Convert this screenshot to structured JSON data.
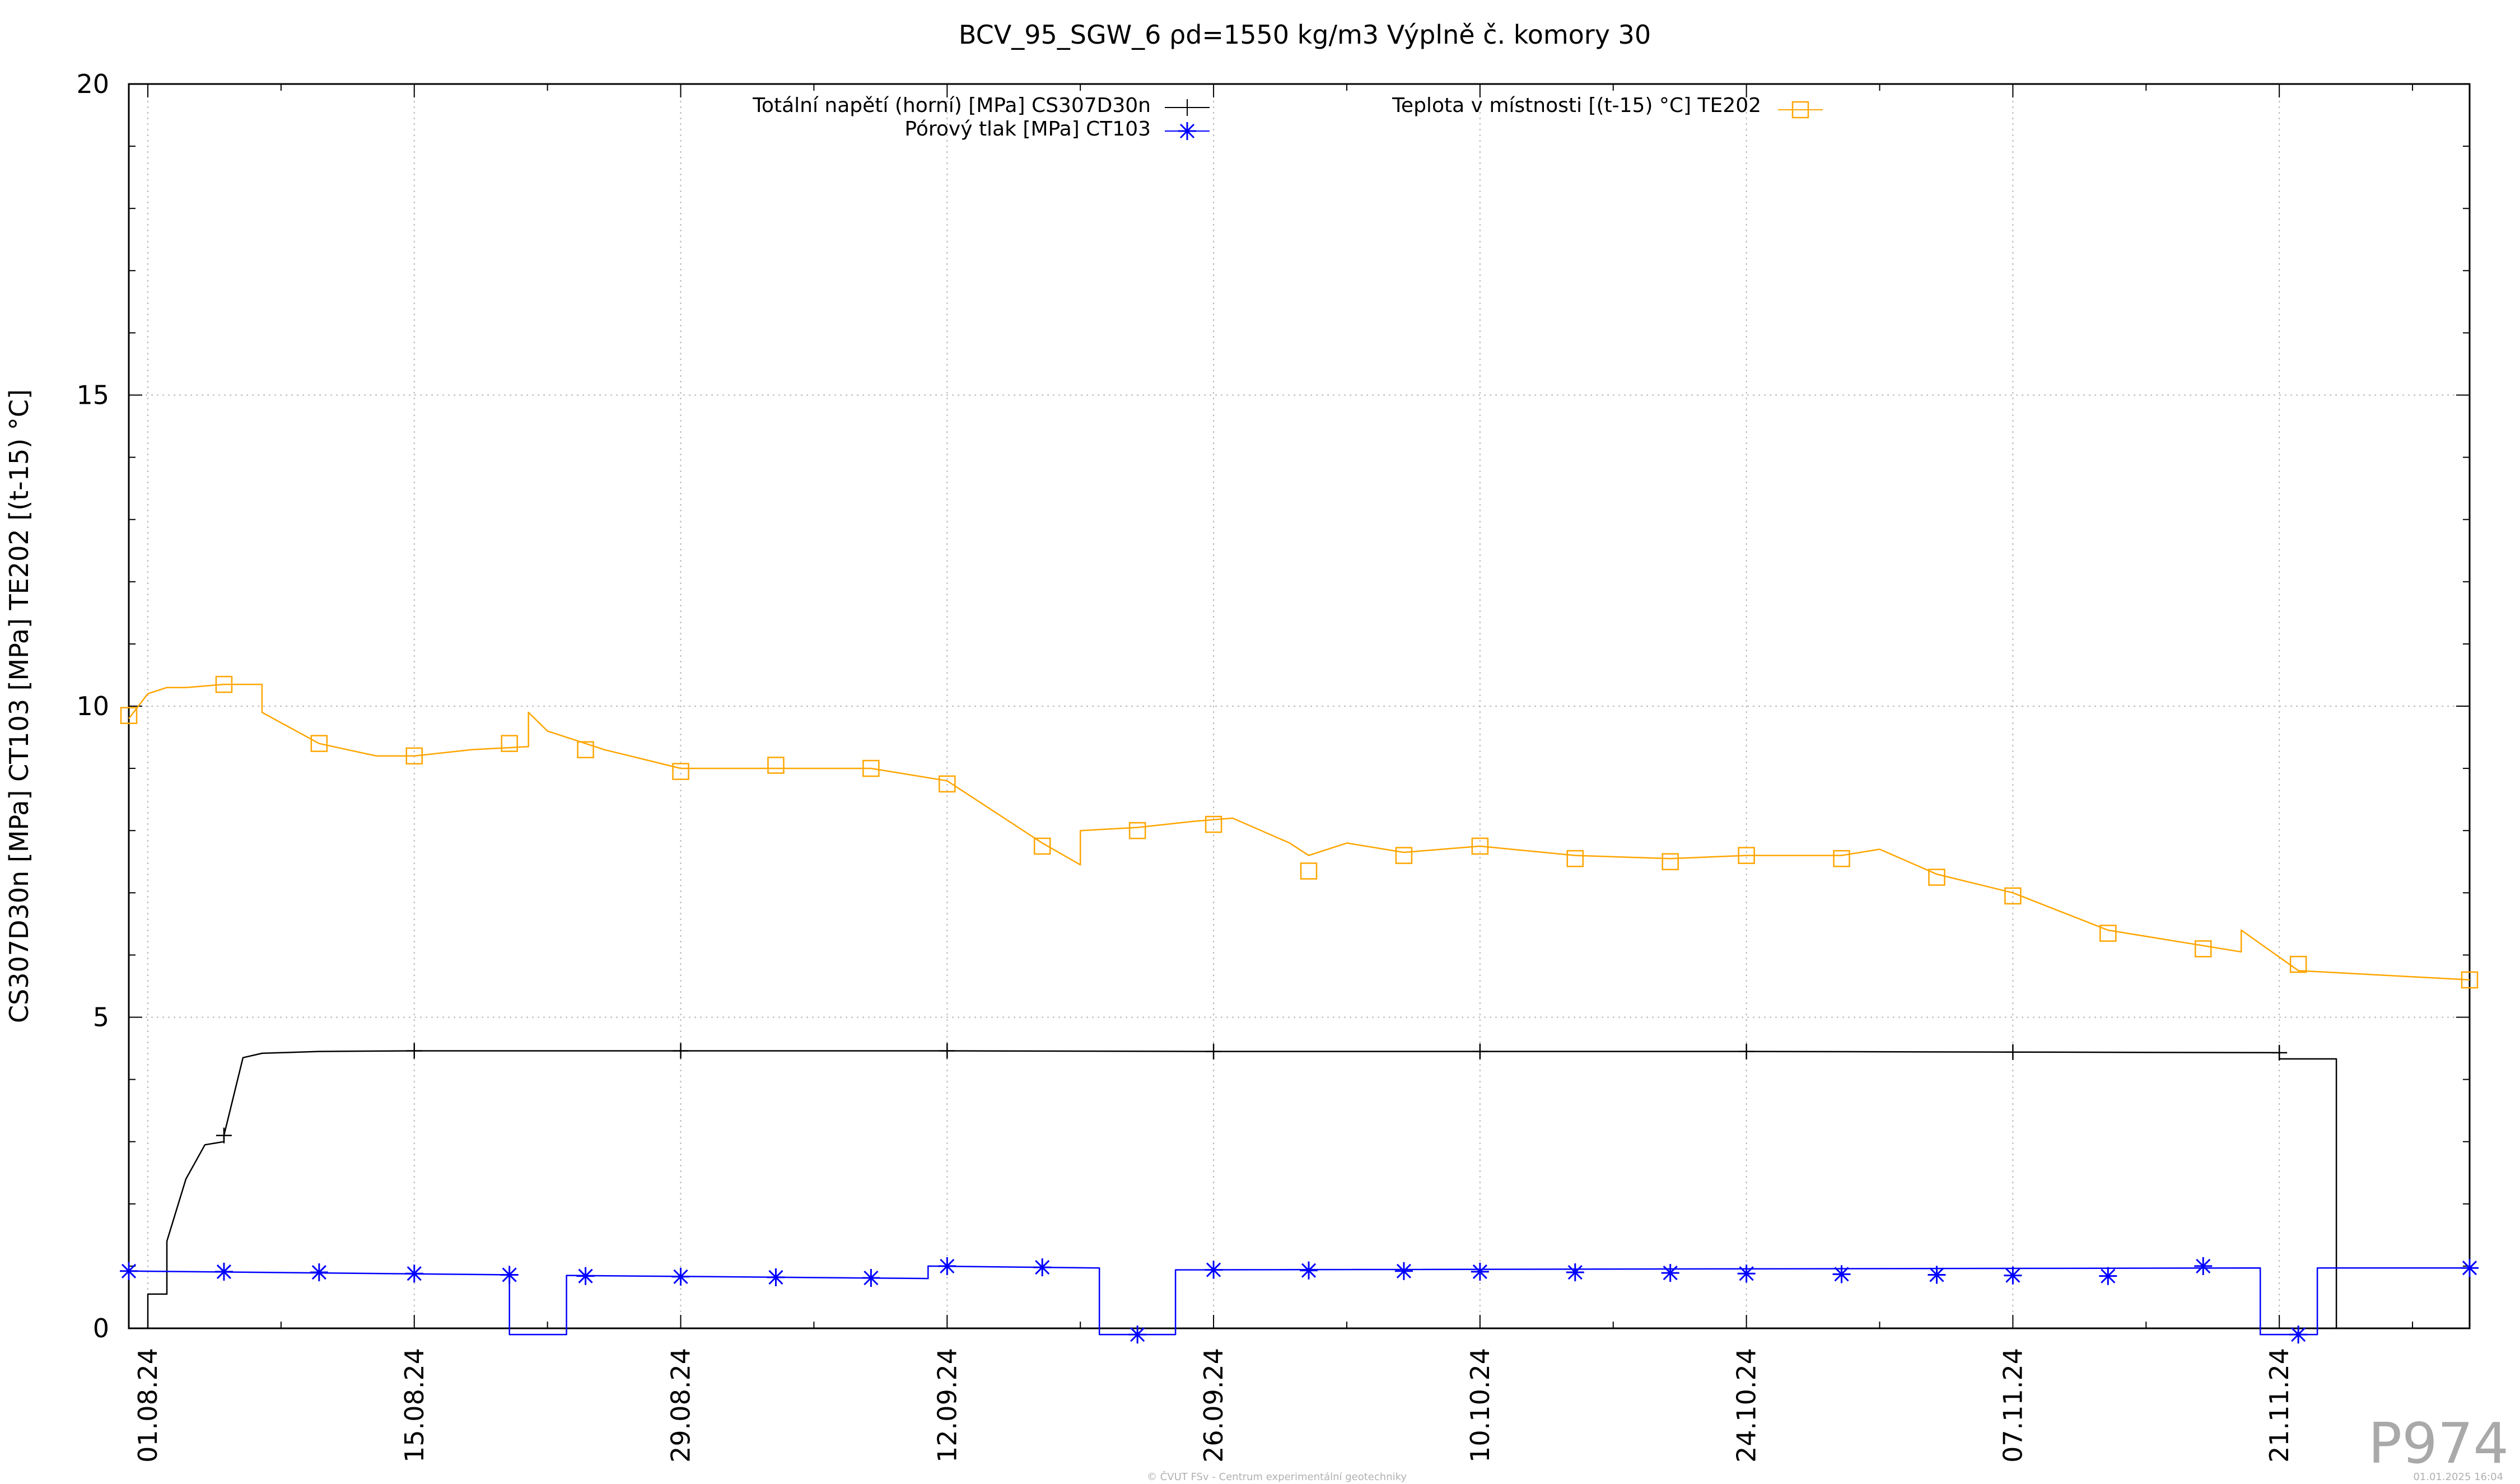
{
  "chart_data": {
    "type": "line",
    "title": "BCV_95_SGW_6 ρd=1550 kg/m3 Výplně č. komory 30",
    "xlabel": "",
    "ylabel": "CS307D30n [MPa] CT103 [MPa] TE202 [(t-15) °C]",
    "ylim": [
      0,
      20
    ],
    "yticks": [
      "0",
      "5",
      "10",
      "15",
      "20"
    ],
    "xlim": [
      "2024-07-31",
      "2024-12-01"
    ],
    "xticks": [
      {
        "date": "2024-08-01",
        "label": "01.08.24"
      },
      {
        "date": "2024-08-15",
        "label": "15.08.24"
      },
      {
        "date": "2024-08-29",
        "label": "29.08.24"
      },
      {
        "date": "2024-09-12",
        "label": "12.09.24"
      },
      {
        "date": "2024-09-26",
        "label": "26.09.24"
      },
      {
        "date": "2024-10-10",
        "label": "10.10.24"
      },
      {
        "date": "2024-10-24",
        "label": "24.10.24"
      },
      {
        "date": "2024-11-07",
        "label": "07.11.24"
      },
      {
        "date": "2024-11-21",
        "label": "21.11.24"
      }
    ],
    "grid": true,
    "legend_position": "top",
    "series": [
      {
        "name": "Totální napětí (horní) [MPa] CS307D30n",
        "color": "#000000",
        "marker": "plus",
        "step": false,
        "x": [
          "2024-07-31",
          "2024-08-01",
          "2024-08-01",
          "2024-08-02",
          "2024-08-02",
          "2024-08-03",
          "2024-08-04",
          "2024-08-05",
          "2024-08-05",
          "2024-08-06",
          "2024-08-07",
          "2024-08-08",
          "2024-08-10",
          "2024-08-15",
          "2024-08-29",
          "2024-09-12",
          "2024-09-26",
          "2024-10-10",
          "2024-10-24",
          "2024-11-07",
          "2024-11-21",
          "2024-11-21",
          "2024-11-24",
          "2024-11-24",
          "2024-11-26",
          "2024-12-01"
        ],
        "y": [
          0.0,
          0.0,
          0.55,
          0.55,
          1.4,
          2.4,
          2.95,
          3.0,
          3.1,
          4.35,
          4.42,
          4.43,
          4.45,
          4.46,
          4.46,
          4.46,
          4.45,
          4.45,
          4.45,
          4.44,
          4.43,
          4.33,
          4.33,
          0.0,
          0.0,
          0.0
        ],
        "markers_x": [
          "2024-08-05",
          "2024-08-15",
          "2024-08-29",
          "2024-09-12",
          "2024-09-26",
          "2024-10-10",
          "2024-10-24",
          "2024-11-07",
          "2024-11-21"
        ],
        "markers_y": [
          3.1,
          4.46,
          4.46,
          4.46,
          4.45,
          4.45,
          4.45,
          4.44,
          4.43
        ]
      },
      {
        "name": "Pórový tlak [MPa] CT103",
        "color": "#0000ff",
        "marker": "star",
        "step": true,
        "x": [
          "2024-07-31",
          "2024-08-20",
          "2024-08-20",
          "2024-08-23",
          "2024-08-23",
          "2024-09-11",
          "2024-09-11",
          "2024-09-20",
          "2024-09-20",
          "2024-09-24",
          "2024-09-24",
          "2024-11-20",
          "2024-11-20",
          "2024-11-23",
          "2024-11-23",
          "2024-12-01"
        ],
        "y": [
          0.92,
          0.86,
          -0.1,
          -0.1,
          0.85,
          0.8,
          1.0,
          0.97,
          -0.1,
          -0.1,
          0.94,
          0.97,
          -0.1,
          -0.1,
          0.97,
          0.97
        ],
        "markers_x": [
          "2024-07-31",
          "2024-08-05",
          "2024-08-10",
          "2024-08-15",
          "2024-08-20",
          "2024-08-24",
          "2024-08-29",
          "2024-09-03",
          "2024-09-08",
          "2024-09-12",
          "2024-09-17",
          "2024-09-22",
          "2024-09-26",
          "2024-10-01",
          "2024-10-06",
          "2024-10-10",
          "2024-10-15",
          "2024-10-20",
          "2024-10-24",
          "2024-10-29",
          "2024-11-03",
          "2024-11-07",
          "2024-11-12",
          "2024-11-17",
          "2024-11-22",
          "2024-12-01"
        ],
        "markers_y": [
          0.92,
          0.91,
          0.9,
          0.88,
          0.86,
          0.84,
          0.83,
          0.82,
          0.81,
          1.0,
          0.98,
          -0.1,
          0.94,
          0.93,
          0.92,
          0.91,
          0.9,
          0.89,
          0.88,
          0.87,
          0.86,
          0.85,
          0.84,
          1.0,
          -0.1,
          0.97
        ]
      },
      {
        "name": "Teplota v místnosti [(t-15) °C] TE202",
        "color": "#ffa500",
        "marker": "square",
        "step": false,
        "x": [
          "2024-07-31",
          "2024-08-01",
          "2024-08-02",
          "2024-08-03",
          "2024-08-05",
          "2024-08-07",
          "2024-08-07",
          "2024-08-10",
          "2024-08-13",
          "2024-08-15",
          "2024-08-18",
          "2024-08-21",
          "2024-08-21",
          "2024-08-22",
          "2024-08-25",
          "2024-08-29",
          "2024-09-03",
          "2024-09-08",
          "2024-09-12",
          "2024-09-15",
          "2024-09-17",
          "2024-09-19",
          "2024-09-19",
          "2024-09-22",
          "2024-09-25",
          "2024-09-27",
          "2024-09-30",
          "2024-10-01",
          "2024-10-03",
          "2024-10-06",
          "2024-10-10",
          "2024-10-15",
          "2024-10-20",
          "2024-10-24",
          "2024-10-29",
          "2024-10-31",
          "2024-11-03",
          "2024-11-07",
          "2024-11-12",
          "2024-11-17",
          "2024-11-19",
          "2024-11-19",
          "2024-11-22",
          "2024-11-25",
          "2024-12-01"
        ],
        "y": [
          9.8,
          10.2,
          10.3,
          10.3,
          10.35,
          10.35,
          9.9,
          9.4,
          9.2,
          9.2,
          9.3,
          9.35,
          9.9,
          9.6,
          9.3,
          9.0,
          9.0,
          9.0,
          8.8,
          8.2,
          7.8,
          7.45,
          8.0,
          8.05,
          8.15,
          8.2,
          7.8,
          7.6,
          7.8,
          7.65,
          7.75,
          7.6,
          7.55,
          7.6,
          7.6,
          7.7,
          7.3,
          7.0,
          6.4,
          6.15,
          6.05,
          6.4,
          5.75,
          5.7,
          5.6
        ],
        "markers_x": [
          "2024-07-31",
          "2024-08-05",
          "2024-08-10",
          "2024-08-15",
          "2024-08-20",
          "2024-08-24",
          "2024-08-29",
          "2024-09-03",
          "2024-09-08",
          "2024-09-12",
          "2024-09-17",
          "2024-09-22",
          "2024-09-26",
          "2024-10-01",
          "2024-10-06",
          "2024-10-10",
          "2024-10-15",
          "2024-10-20",
          "2024-10-24",
          "2024-10-29",
          "2024-11-03",
          "2024-11-07",
          "2024-11-12",
          "2024-11-17",
          "2024-11-22",
          "2024-12-01"
        ],
        "markers_y": [
          9.85,
          10.35,
          9.4,
          9.2,
          9.4,
          9.3,
          8.95,
          9.05,
          9.0,
          8.75,
          7.75,
          8.0,
          8.1,
          7.35,
          7.6,
          7.75,
          7.55,
          7.5,
          7.6,
          7.55,
          7.25,
          6.95,
          6.35,
          6.1,
          5.85,
          5.6
        ]
      }
    ],
    "annotations": {
      "plot_id": "P974",
      "footer_left": "© ČVUT FSv - Centrum experimentální geotechniky",
      "footer_right": "01.01.2025 16:04"
    }
  }
}
